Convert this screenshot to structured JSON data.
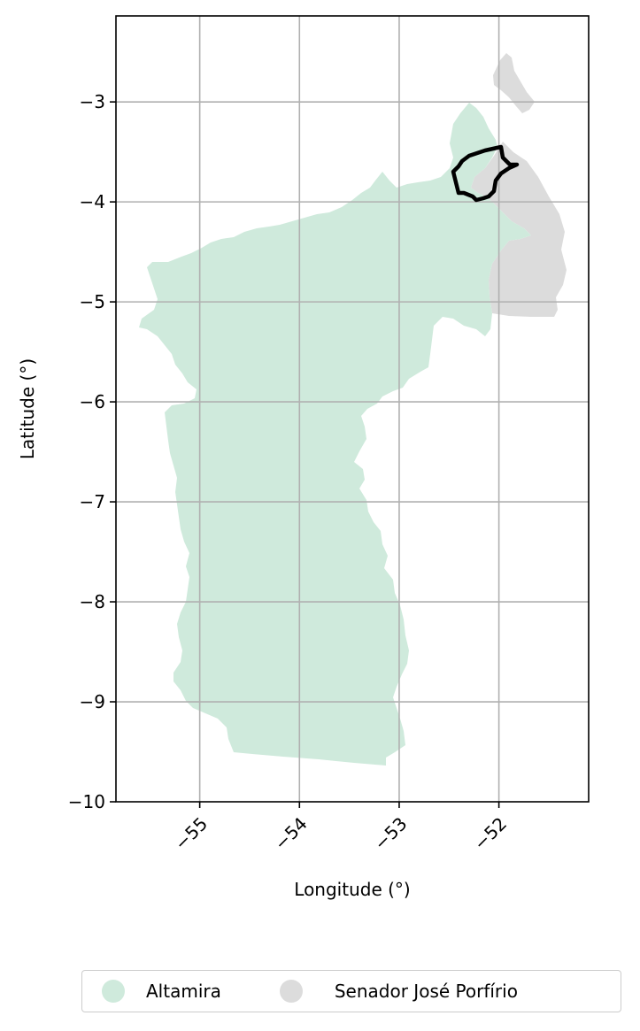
{
  "map": {
    "xlabel": "Longitude (°)",
    "ylabel": "Latitude (°)",
    "x_ticks": [
      "−55",
      "−54",
      "−53",
      "−52"
    ],
    "y_ticks": [
      "−3",
      "−4",
      "−5",
      "−6",
      "−7",
      "−8",
      "−9",
      "−10"
    ],
    "x_tick_values": [
      -55,
      -54,
      -53,
      -52
    ],
    "y_tick_values": [
      -3,
      -4,
      -5,
      -6,
      -7,
      -8,
      -9,
      -10
    ],
    "xlim": [
      -55.84,
      -51.1
    ],
    "ylim": [
      -10.0,
      -2.14
    ],
    "grid": true,
    "highlight_outline_color": "#000000"
  },
  "legend": {
    "placement": "bottom",
    "items": [
      {
        "label": "Altamira",
        "color": "#cfeadc"
      },
      {
        "label": "Senador José Porfírio",
        "color": "#dcdcdc"
      }
    ]
  }
}
